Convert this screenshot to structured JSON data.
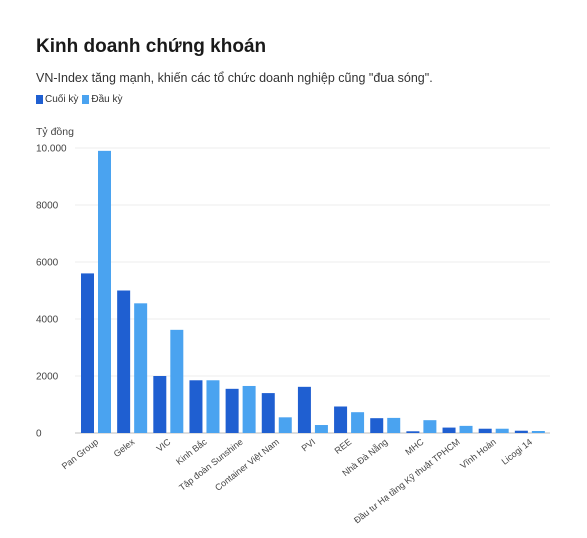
{
  "chart_data": {
    "type": "bar",
    "title": "Kinh doanh chứng khoán",
    "subtitle": "VN-Index tăng mạnh, khiến các tổ chức doanh nghiệp cũng \"đua sóng\".",
    "ylabel": "Tỷ đồng",
    "xlabel": "",
    "ylim": [
      0,
      10000
    ],
    "yticks": [
      0,
      2000,
      4000,
      6000,
      8000,
      10000
    ],
    "ytick_labels": [
      "0",
      "2000",
      "4000",
      "6000",
      "8000",
      "10.000"
    ],
    "grid": true,
    "legend_position": "top-left",
    "categories": [
      "Pan Group",
      "Gelex",
      "VIC",
      "Kinh Bắc",
      "Tập đoàn Sunshine",
      "Container Việt Nam",
      "PVI",
      "REE",
      "Nhà Đà Nẵng",
      "MHC",
      "Đầu tư Hạ tầng Kỹ thuật TPHCM",
      "Vĩnh Hoàn",
      "Licogi 14"
    ],
    "series": [
      {
        "name": "Cuối kỳ",
        "color": "#1f5fd1",
        "values": [
          5600,
          5000,
          2000,
          1850,
          1550,
          1400,
          1620,
          930,
          520,
          60,
          190,
          150,
          80
        ]
      },
      {
        "name": "Đầu kỳ",
        "color": "#4aa3f0",
        "values": [
          9900,
          4550,
          3620,
          1850,
          1650,
          550,
          280,
          730,
          530,
          450,
          250,
          150,
          70
        ]
      }
    ]
  }
}
